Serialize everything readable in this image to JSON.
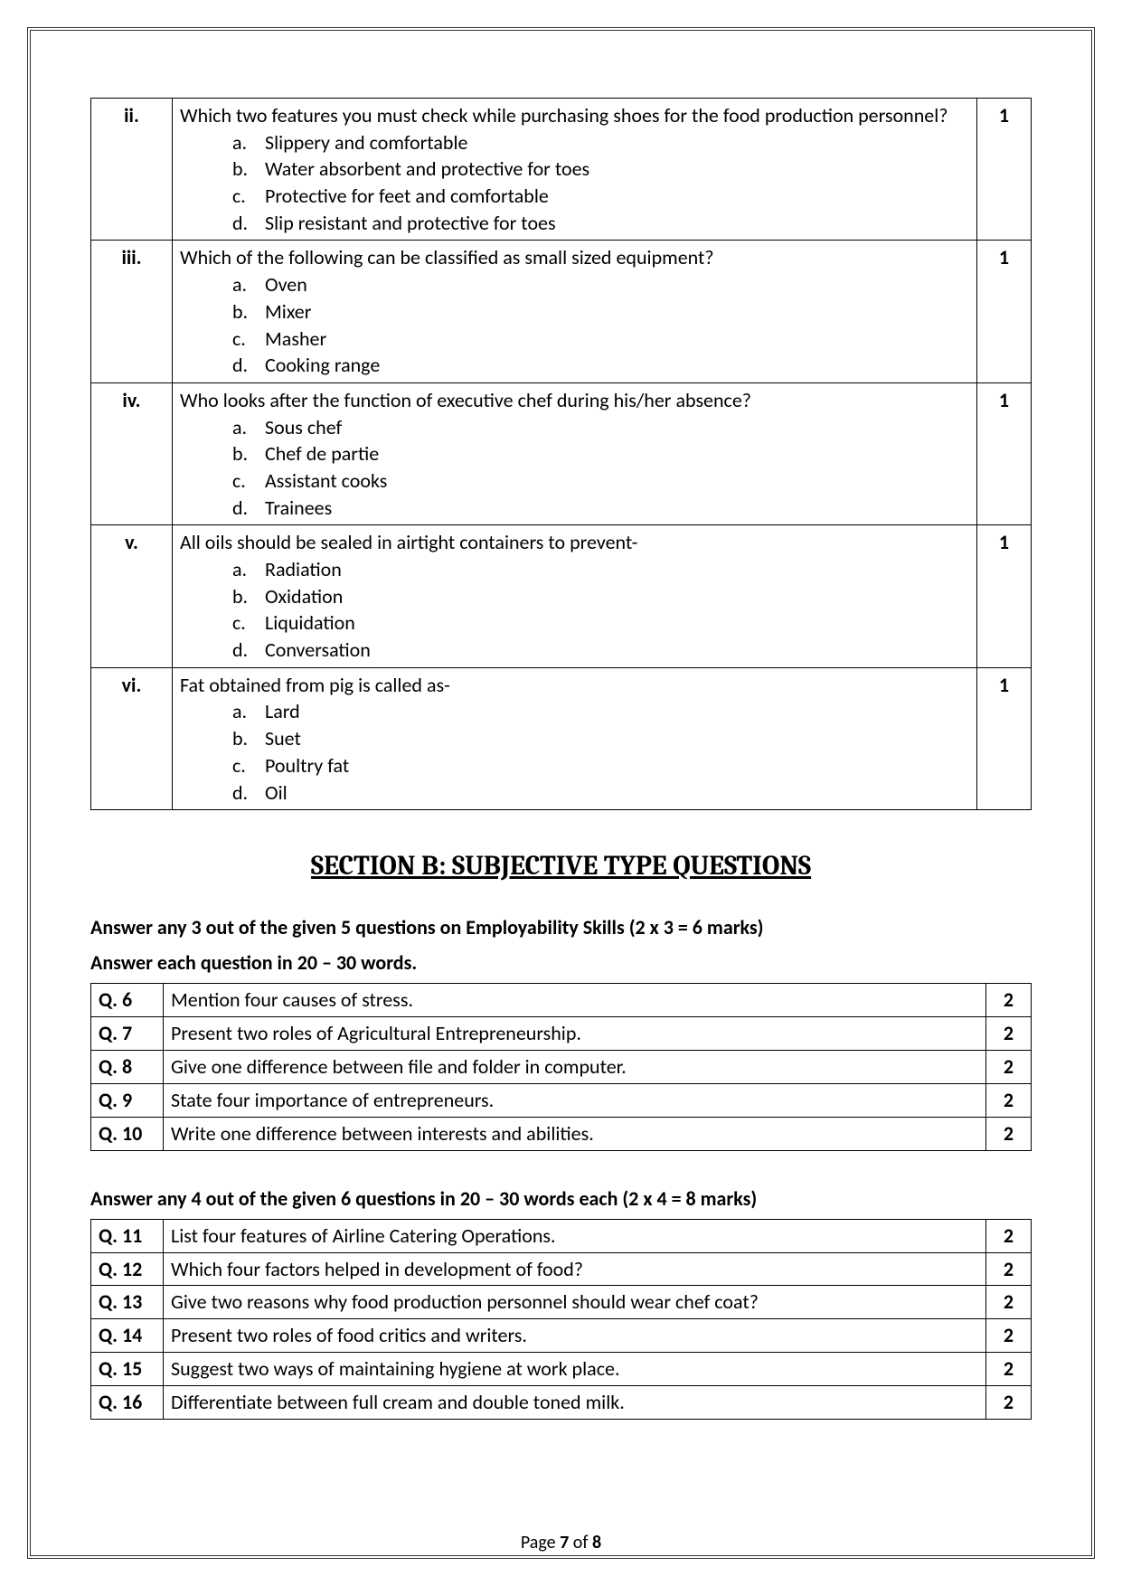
{
  "mcq": [
    {
      "num": "ii.",
      "question": "Which two features you must check while purchasing shoes for the food production personnel?",
      "options": [
        "Slippery and comfortable",
        "Water absorbent and protective for toes",
        "Protective for feet and comfortable",
        "Slip resistant and protective for toes"
      ],
      "marks": "1"
    },
    {
      "num": "iii.",
      "question": "Which of the following can be classified as small sized equipment?",
      "options": [
        "Oven",
        "Mixer",
        "Masher",
        "Cooking range"
      ],
      "marks": "1"
    },
    {
      "num": "iv.",
      "question": "Who looks after the function of executive chef during his/her absence?",
      "options": [
        "Sous chef",
        "Chef de partie",
        "Assistant cooks",
        "Trainees"
      ],
      "marks": "1"
    },
    {
      "num": "v.",
      "question": "All oils should be sealed in airtight containers to prevent-",
      "options": [
        "Radiation",
        "Oxidation",
        "Liquidation",
        "Conversation"
      ],
      "marks": "1"
    },
    {
      "num": "vi.",
      "question": "Fat obtained from pig is called as-",
      "options": [
        "Lard",
        "Suet",
        "Poultry fat",
        "Oil"
      ],
      "marks": "1"
    }
  ],
  "section_b_title": "SECTION B: SUBJECTIVE TYPE QUESTIONS",
  "instr_b1_line1": "Answer any 3 out of the given 5 questions on Employability Skills (2 x 3 = 6 marks)",
  "instr_b1_line2": "Answer each question in 20 – 30 words.",
  "subj1": [
    {
      "q": "Q. 6",
      "text": "Mention four causes of stress.",
      "m": "2"
    },
    {
      "q": "Q. 7",
      "text": "Present two roles of Agricultural Entrepreneurship.",
      "m": "2"
    },
    {
      "q": "Q. 8",
      "text": "Give one difference between file and folder in computer.",
      "m": "2"
    },
    {
      "q": "Q. 9",
      "text": "State four importance of entrepreneurs.",
      "m": "2"
    },
    {
      "q": "Q. 10",
      "text": "Write one difference between interests and abilities.",
      "m": "2"
    }
  ],
  "instr_b2": "Answer any 4 out of the given 6 questions in 20 – 30 words each (2 x 4 = 8 marks)",
  "subj2": [
    {
      "q": "Q. 11",
      "text": "List four features of Airline Catering Operations.",
      "m": "2"
    },
    {
      "q": "Q. 12",
      "text": "Which four factors helped in development of food?",
      "m": "2"
    },
    {
      "q": "Q. 13",
      "text": "Give two reasons why food production personnel should wear chef coat?",
      "m": "2"
    },
    {
      "q": "Q. 14",
      "text": "Present two roles of food critics and writers.",
      "m": "2"
    },
    {
      "q": "Q. 15",
      "text": "Suggest two ways of maintaining hygiene at work place.",
      "m": "2"
    },
    {
      "q": "Q. 16",
      "text": "Differentiate between full cream and double toned milk.",
      "m": "2"
    }
  ],
  "footer": {
    "pre": "Page ",
    "cur": "7",
    "mid": " of ",
    "tot": "8"
  },
  "letters": [
    "a.",
    "b.",
    "c.",
    "d."
  ]
}
